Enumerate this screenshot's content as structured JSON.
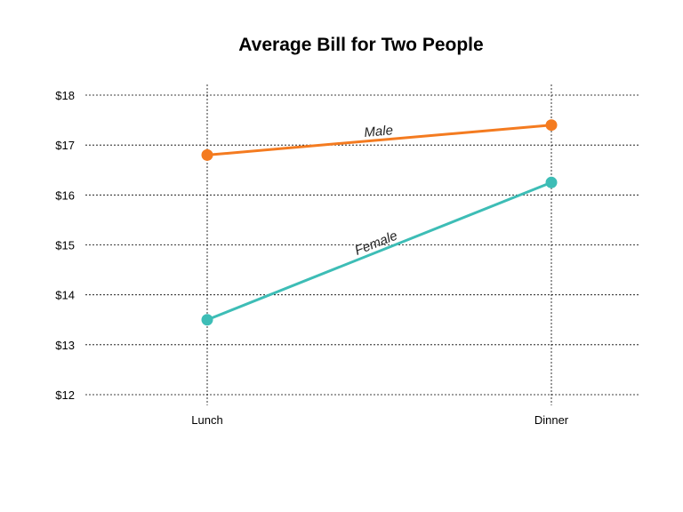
{
  "chart_data": {
    "type": "line",
    "title": "Average Bill for Two People",
    "xlabel": "",
    "ylabel": "",
    "categories": [
      "Lunch",
      "Dinner"
    ],
    "ylim": [
      12,
      18
    ],
    "yticks": [
      12,
      13,
      14,
      15,
      16,
      17,
      18
    ],
    "ytick_labels": [
      "$12",
      "$13",
      "$14",
      "$15",
      "$16",
      "$17",
      "$18"
    ],
    "grid": true,
    "legend": "none (series labeled directly on lines)",
    "series": [
      {
        "name": "Male",
        "values": [
          16.8,
          17.4
        ],
        "color": "#f47b20"
      },
      {
        "name": "Female",
        "values": [
          13.5,
          16.25
        ],
        "color": "#3dbdb6"
      }
    ]
  }
}
